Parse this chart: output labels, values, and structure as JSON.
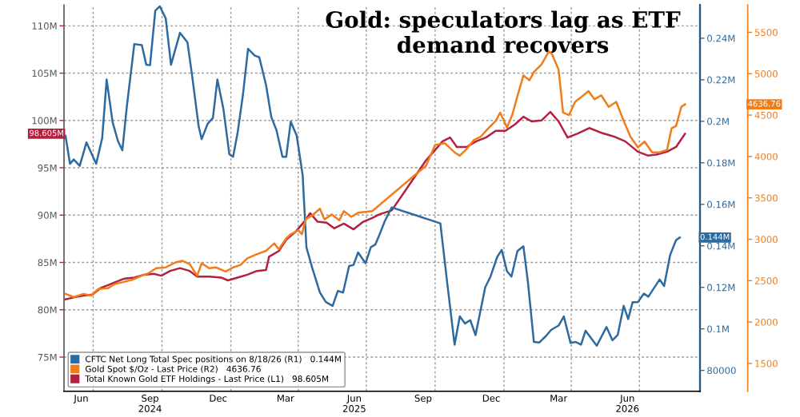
{
  "chart_data": {
    "type": "line",
    "title": "Gold: speculators lag as ETF\ndemand recovers",
    "xlim": [
      "2024-05-23",
      "2026-09-20"
    ],
    "xticks": [
      {
        "value": "2024-06-15",
        "label": "Jun"
      },
      {
        "value": "2024-07-01",
        "label": null
      },
      {
        "value": "2024-09-15",
        "label": "Sep\n2024"
      },
      {
        "value": "2024-10-01",
        "label": null
      },
      {
        "value": "2024-12-15",
        "label": "Dec"
      },
      {
        "value": "2025-01-01",
        "label": null
      },
      {
        "value": "2025-03-15",
        "label": "Mar"
      },
      {
        "value": "2025-04-01",
        "label": null
      },
      {
        "value": "2025-06-15",
        "label": "Jun\n2025"
      },
      {
        "value": "2025-07-01",
        "label": null
      },
      {
        "value": "2025-09-15",
        "label": "Sep"
      },
      {
        "value": "2025-10-01",
        "label": null
      },
      {
        "value": "2025-12-15",
        "label": "Dec"
      },
      {
        "value": "2026-01-01",
        "label": null
      },
      {
        "value": "2026-03-15",
        "label": "Mar"
      },
      {
        "value": "2026-04-01",
        "label": null
      },
      {
        "value": "2026-06-15",
        "label": "Jun\n2026"
      },
      {
        "value": "2026-07-01",
        "label": null
      }
    ],
    "ylim": [
      71.4,
      112.2
    ],
    "yticks": [
      {
        "value": 75,
        "label": "75M"
      },
      {
        "value": 80,
        "label": "80M"
      },
      {
        "value": 85,
        "label": "85M"
      },
      {
        "value": 90,
        "label": "90M"
      },
      {
        "value": 95,
        "label": "95M"
      },
      {
        "value": 100,
        "label": "100M"
      },
      {
        "value": 105,
        "label": "105M"
      },
      {
        "value": 110,
        "label": "110M"
      }
    ],
    "y2lim": [
      70000,
      256000
    ],
    "y2ticks": [
      80000,
      {
        "value": 100000,
        "label": "0.1M"
      },
      {
        "value": 120000,
        "label": "0.12M"
      },
      {
        "value": 140000,
        "label": "0.14M"
      },
      {
        "value": 160000,
        "label": "0.16M"
      },
      {
        "value": 180000,
        "label": "0.18M"
      },
      {
        "value": 200000,
        "label": "0.2M"
      },
      {
        "value": 220000,
        "label": "0.22M"
      },
      {
        "value": 240000,
        "label": "0.24M"
      }
    ],
    "y3lim": [
      1165,
      5830
    ],
    "y3ticks": [
      1500,
      2000,
      2500,
      3000,
      3500,
      4000,
      4500,
      5000,
      5500
    ],
    "grid": true,
    "legend": "bottom left",
    "marker": "none",
    "line_style": "solid",
    "annotations": [
      "0.144M",
      "4636.76",
      "98.605M"
    ],
    "series": [
      {
        "name": "CFTC Net Long Total Spec positions on 8/18/26 (R1)   0.144M",
        "color": "#2c6aa0",
        "axis": "y2",
        "x": [
          "2024-05-25",
          "2024-05-31",
          "2024-06-05",
          "2024-06-13",
          "2024-06-22",
          "2024-07-05",
          "2024-07-13",
          "2024-07-19",
          "2024-07-27",
          "2024-08-03",
          "2024-08-09",
          "2024-08-15",
          "2024-08-25",
          "2024-09-04",
          "2024-09-10",
          "2024-09-15",
          "2024-09-22",
          "2024-09-28",
          "2024-10-06",
          "2024-10-13",
          "2024-10-25",
          "2024-11-04",
          "2024-11-10",
          "2024-11-19",
          "2024-11-23",
          "2024-12-01",
          "2024-12-08",
          "2024-12-14",
          "2024-12-22",
          "2024-12-30",
          "2025-01-04",
          "2025-01-10",
          "2025-01-17",
          "2025-01-24",
          "2025-02-02",
          "2025-02-08",
          "2025-02-17",
          "2025-02-24",
          "2025-03-03",
          "2025-03-11",
          "2025-03-16",
          "2025-03-22",
          "2025-03-30",
          "2025-04-07",
          "2025-04-12",
          "2025-04-20",
          "2025-04-30",
          "2025-05-08",
          "2025-05-17",
          "2025-05-24",
          "2025-05-31",
          "2025-06-08",
          "2025-06-14",
          "2025-06-20",
          "2025-06-30",
          "2025-07-07",
          "2025-07-13",
          "2025-07-19",
          "2025-07-26",
          "2025-08-04",
          "2025-10-08",
          "2025-10-17",
          "2025-10-27",
          "2025-11-03",
          "2025-11-10",
          "2025-11-17",
          "2025-11-24",
          "2025-12-07",
          "2025-12-14",
          "2025-12-23",
          "2025-12-29",
          "2026-01-05",
          "2026-01-11",
          "2026-01-19",
          "2026-01-27",
          "2026-02-02",
          "2026-02-10",
          "2026-02-17",
          "2026-02-26",
          "2026-03-05",
          "2026-03-15",
          "2026-03-22",
          "2026-03-31",
          "2026-04-07",
          "2026-04-14",
          "2026-04-20",
          "2026-04-27",
          "2026-05-05",
          "2026-05-18",
          "2026-05-26",
          "2026-06-02",
          "2026-06-10",
          "2026-06-16",
          "2026-06-22",
          "2026-06-29",
          "2026-07-07",
          "2026-07-13",
          "2026-07-28",
          "2026-08-03",
          "2026-08-11",
          "2026-08-19",
          "2026-08-24"
        ],
        "values": [
          193000,
          179500,
          181600,
          178500,
          189800,
          179500,
          191800,
          220100,
          199500,
          190600,
          186000,
          207200,
          237200,
          236700,
          227200,
          227000,
          253300,
          255400,
          249500,
          227200,
          242600,
          238000,
          222600,
          197500,
          191400,
          198800,
          201600,
          220100,
          206000,
          184100,
          182900,
          194400,
          212400,
          234900,
          231600,
          230800,
          217500,
          202100,
          195700,
          182900,
          182900,
          199800,
          193100,
          173900,
          139300,
          129100,
          117500,
          112900,
          111100,
          118300,
          117500,
          130300,
          130800,
          136800,
          131600,
          139300,
          140600,
          145700,
          152100,
          158500,
          150800,
          122600,
          92400,
          106000,
          102600,
          104200,
          97000,
          120100,
          125200,
          134700,
          138000,
          127800,
          125200,
          137500,
          139800,
          122600,
          93700,
          93400,
          96500,
          99500,
          101600,
          106000,
          93200,
          93700,
          92400,
          99100,
          95700,
          91900,
          100900,
          94500,
          97000,
          111100,
          104700,
          112900,
          112900,
          117000,
          115500,
          123800,
          120600,
          135500,
          142800,
          144000
        ]
      },
      {
        "name": "Gold Spot $/Oz - Last Price (R2)   4636.76",
        "color": "#f07d1a",
        "axis": "y3",
        "x": [
          "2024-05-25",
          "2024-06-05",
          "2024-06-18",
          "2024-06-28",
          "2024-07-08",
          "2024-07-21",
          "2024-07-30",
          "2024-08-09",
          "2024-08-22",
          "2024-09-04",
          "2024-09-13",
          "2024-09-23",
          "2024-10-06",
          "2024-10-19",
          "2024-10-28",
          "2024-11-07",
          "2024-11-17",
          "2024-11-23",
          "2024-12-03",
          "2024-12-12",
          "2024-12-25",
          "2025-01-04",
          "2025-01-14",
          "2025-01-23",
          "2025-02-05",
          "2025-02-17",
          "2025-02-28",
          "2025-03-06",
          "2025-03-16",
          "2025-03-22",
          "2025-04-01",
          "2025-04-06",
          "2025-04-11",
          "2025-04-20",
          "2025-04-30",
          "2025-05-06",
          "2025-05-16",
          "2025-05-26",
          "2025-06-01",
          "2025-06-11",
          "2025-06-20",
          "2025-07-09",
          "2025-09-19",
          "2025-10-01",
          "2025-10-14",
          "2025-10-27",
          "2025-11-03",
          "2025-11-12",
          "2025-11-22",
          "2025-12-01",
          "2025-12-11",
          "2025-12-21",
          "2025-12-27",
          "2026-01-05",
          "2026-01-12",
          "2026-01-19",
          "2026-01-27",
          "2026-02-04",
          "2026-02-10",
          "2026-02-20",
          "2026-03-02",
          "2026-03-06",
          "2026-03-15",
          "2026-03-21",
          "2026-03-29",
          "2026-04-06",
          "2026-04-16",
          "2026-04-24",
          "2026-05-02",
          "2026-05-11",
          "2026-05-21",
          "2026-05-31",
          "2026-06-10",
          "2026-06-19",
          "2026-06-29",
          "2026-07-08",
          "2026-07-18",
          "2026-07-28",
          "2026-08-07",
          "2026-08-13",
          "2026-08-19",
          "2026-08-26",
          "2026-08-31"
        ],
        "values": [
          2340,
          2300,
          2340,
          2320,
          2400,
          2410,
          2460,
          2480,
          2510,
          2560,
          2590,
          2650,
          2660,
          2720,
          2740,
          2700,
          2560,
          2710,
          2650,
          2660,
          2610,
          2660,
          2690,
          2770,
          2820,
          2860,
          2950,
          2880,
          3010,
          3060,
          3110,
          3060,
          3240,
          3290,
          3370,
          3240,
          3300,
          3230,
          3340,
          3270,
          3320,
          3340,
          3890,
          4140,
          4160,
          4050,
          4010,
          4090,
          4200,
          4240,
          4340,
          4430,
          4530,
          4350,
          4500,
          4730,
          4980,
          4920,
          5020,
          5110,
          5270,
          5240,
          5050,
          4530,
          4500,
          4660,
          4730,
          4790,
          4690,
          4740,
          4600,
          4660,
          4430,
          4240,
          4110,
          4180,
          4050,
          4050,
          4080,
          4340,
          4370,
          4600,
          4630
        ]
      },
      {
        "name": "Total Known Gold ETF Holdings - Last Price (L1)   98.605M",
        "color": "#b32040",
        "axis": "y",
        "x": [
          "2024-05-25",
          "2024-06-05",
          "2024-06-18",
          "2024-06-30",
          "2024-07-11",
          "2024-07-21",
          "2024-07-30",
          "2024-08-12",
          "2024-08-25",
          "2024-09-07",
          "2024-09-20",
          "2024-09-30",
          "2024-10-12",
          "2024-10-25",
          "2024-11-07",
          "2024-11-17",
          "2024-12-03",
          "2024-12-19",
          "2024-12-28",
          "2025-01-10",
          "2025-01-23",
          "2025-02-05",
          "2025-02-17",
          "2025-02-21",
          "2025-03-06",
          "2025-03-16",
          "2025-03-28",
          "2025-04-07",
          "2025-04-17",
          "2025-04-27",
          "2025-05-09",
          "2025-05-19",
          "2025-06-01",
          "2025-06-14",
          "2025-06-27",
          "2025-07-09",
          "2025-07-19",
          "2025-08-04",
          "2025-09-19",
          "2025-10-11",
          "2025-10-21",
          "2025-10-30",
          "2025-11-12",
          "2025-11-25",
          "2025-12-08",
          "2025-12-21",
          "2026-01-03",
          "2026-01-16",
          "2026-01-27",
          "2026-02-07",
          "2026-02-20",
          "2026-03-04",
          "2026-03-15",
          "2026-03-27",
          "2026-04-09",
          "2026-04-25",
          "2026-05-11",
          "2026-05-28",
          "2026-06-12",
          "2026-06-29",
          "2026-07-12",
          "2026-07-24",
          "2026-08-07",
          "2026-08-19",
          "2026-08-31"
        ],
        "values": [
          81.1,
          81.3,
          81.5,
          81.6,
          82.3,
          82.6,
          82.9,
          83.3,
          83.4,
          83.7,
          83.8,
          83.6,
          84.1,
          84.4,
          84.1,
          83.5,
          83.5,
          83.4,
          83.1,
          83.4,
          83.7,
          84.1,
          84.2,
          85.6,
          86.2,
          87.4,
          88.2,
          89.1,
          90.2,
          89.3,
          89.2,
          88.6,
          89.1,
          88.5,
          89.3,
          89.7,
          90.1,
          90.5,
          95.8,
          97.8,
          98.2,
          97.2,
          97.2,
          97.8,
          98.2,
          98.9,
          98.9,
          99.6,
          100.4,
          99.9,
          100.0,
          100.9,
          99.9,
          98.2,
          98.6,
          99.2,
          98.7,
          98.3,
          97.8,
          96.7,
          96.3,
          96.4,
          96.7,
          97.2,
          98.6
        ]
      }
    ]
  }
}
